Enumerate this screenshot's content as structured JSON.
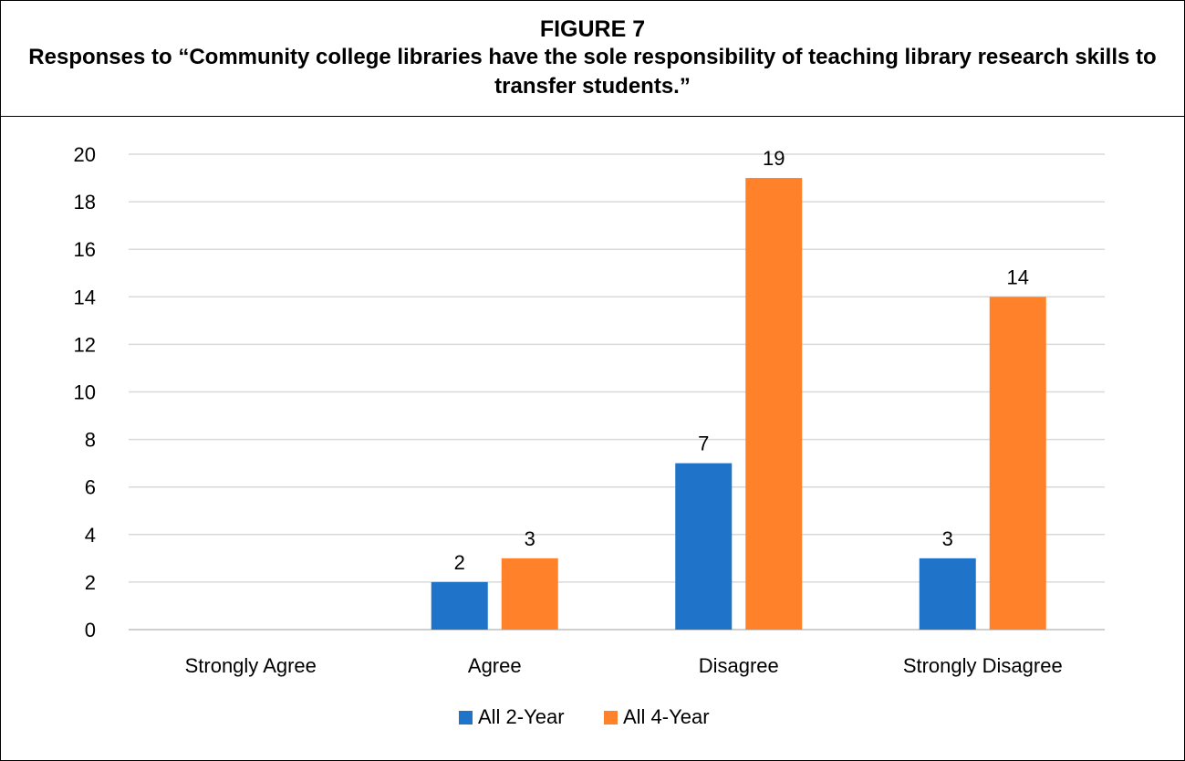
{
  "figure": {
    "label": "FIGURE 7",
    "title": "Responses to “Community college libraries have the sole responsibility of teaching library research skills to transfer students.”"
  },
  "chart_data": {
    "type": "bar",
    "title": "Responses to “Community college libraries have the sole responsibility of teaching library research skills to transfer students.”",
    "categories": [
      "Strongly Agree",
      "Agree",
      "Disagree",
      "Strongly Disagree"
    ],
    "series": [
      {
        "name": "All 2-Year",
        "values": [
          0,
          2,
          7,
          3
        ],
        "color": "#1f73c9"
      },
      {
        "name": "All 4-Year",
        "values": [
          0,
          3,
          19,
          14
        ],
        "color": "#ff8129"
      }
    ],
    "data_labels": [
      [
        null,
        "2",
        "7",
        "3"
      ],
      [
        null,
        "3",
        "19",
        "14"
      ]
    ],
    "xlabel": "",
    "ylabel": "",
    "ylim": [
      0,
      20
    ],
    "yticks": [
      0,
      2,
      4,
      6,
      8,
      10,
      12,
      14,
      16,
      18,
      20
    ],
    "grid": true,
    "legend_position": "bottom"
  }
}
